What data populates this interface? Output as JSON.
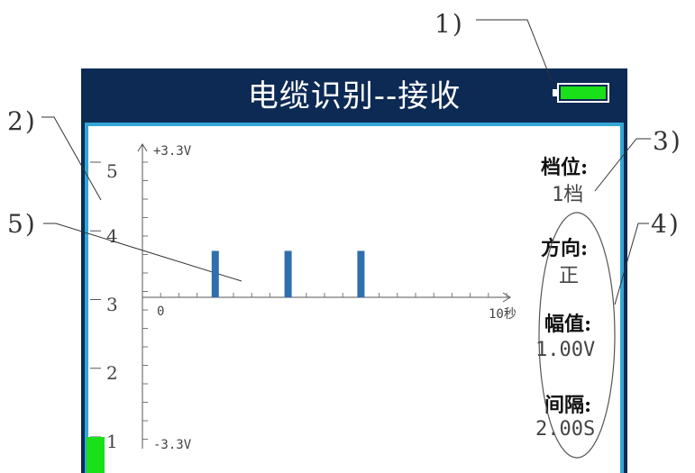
{
  "window": {
    "title": "电缆识别--接收"
  },
  "battery": {
    "icon": "battery-icon",
    "level": 1.0,
    "color": "#19e019"
  },
  "callouts": {
    "c1": "1)",
    "c2": "2)",
    "c3": "3)",
    "c4": "4)",
    "c5": "5)"
  },
  "signal_scale": {
    "labels": [
      "5",
      "4",
      "3",
      "2",
      "1"
    ],
    "level": 1,
    "color": "#19e019"
  },
  "chart": {
    "y_top_label": "+3.3V",
    "y_bottom_label": "-3.3V",
    "x_origin_label": "0",
    "x_end_label": "10秒"
  },
  "chart_data": {
    "type": "bar",
    "x": [
      2,
      4,
      6
    ],
    "values": [
      1.0,
      1.0,
      1.0
    ],
    "xlim": [
      0,
      10
    ],
    "ylim": [
      -3.3,
      3.3
    ],
    "color": "#2e6fad"
  },
  "info_panel": {
    "gear_label": "档位:",
    "gear_value": "1档",
    "direction_label": "方向:",
    "direction_value": "正",
    "amplitude_label": "幅值:",
    "amplitude_value": "1.00V",
    "interval_label": "间隔:",
    "interval_value": "2.00S"
  }
}
